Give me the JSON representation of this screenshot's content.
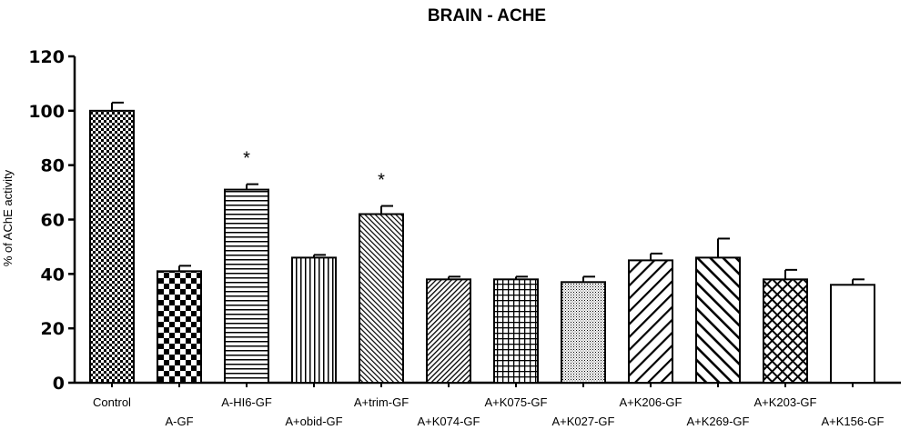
{
  "chart_data": {
    "type": "bar",
    "title": "BRAIN - ACHE",
    "xlabel": "",
    "ylabel": "% of AChE activity",
    "ylim": [
      0,
      120
    ],
    "yticks": [
      0,
      20,
      40,
      60,
      80,
      100,
      120
    ],
    "grid": false,
    "categories": [
      "Control",
      "A-GF",
      "A-HI6-GF",
      "A+obid-GF",
      "A+trim-GF",
      "A+K074-GF",
      "A+K075-GF",
      "A+K027-GF",
      "A+K206-GF",
      "A+K269-GF",
      "A+K203-GF",
      "A+K156-GF"
    ],
    "values": [
      100,
      41,
      71,
      46,
      62,
      38,
      38,
      37,
      45,
      46,
      38,
      36
    ],
    "errors": [
      3,
      2,
      2,
      1,
      3,
      1,
      1,
      2,
      2.5,
      7,
      3.5,
      2
    ],
    "patterns": [
      "checker-fine",
      "checker-coarse",
      "horizontal",
      "vertical",
      "diagonal-fine",
      "diagonal-dense",
      "grid",
      "dots",
      "diagonal-wide",
      "diagonal-wide-thick",
      "crosshatch",
      "none"
    ],
    "annotations": [
      {
        "category": "A-HI6-GF",
        "text": "*"
      },
      {
        "category": "A+trim-GF",
        "text": "*"
      }
    ],
    "bar_color": "#000000",
    "background": "#ffffff"
  }
}
